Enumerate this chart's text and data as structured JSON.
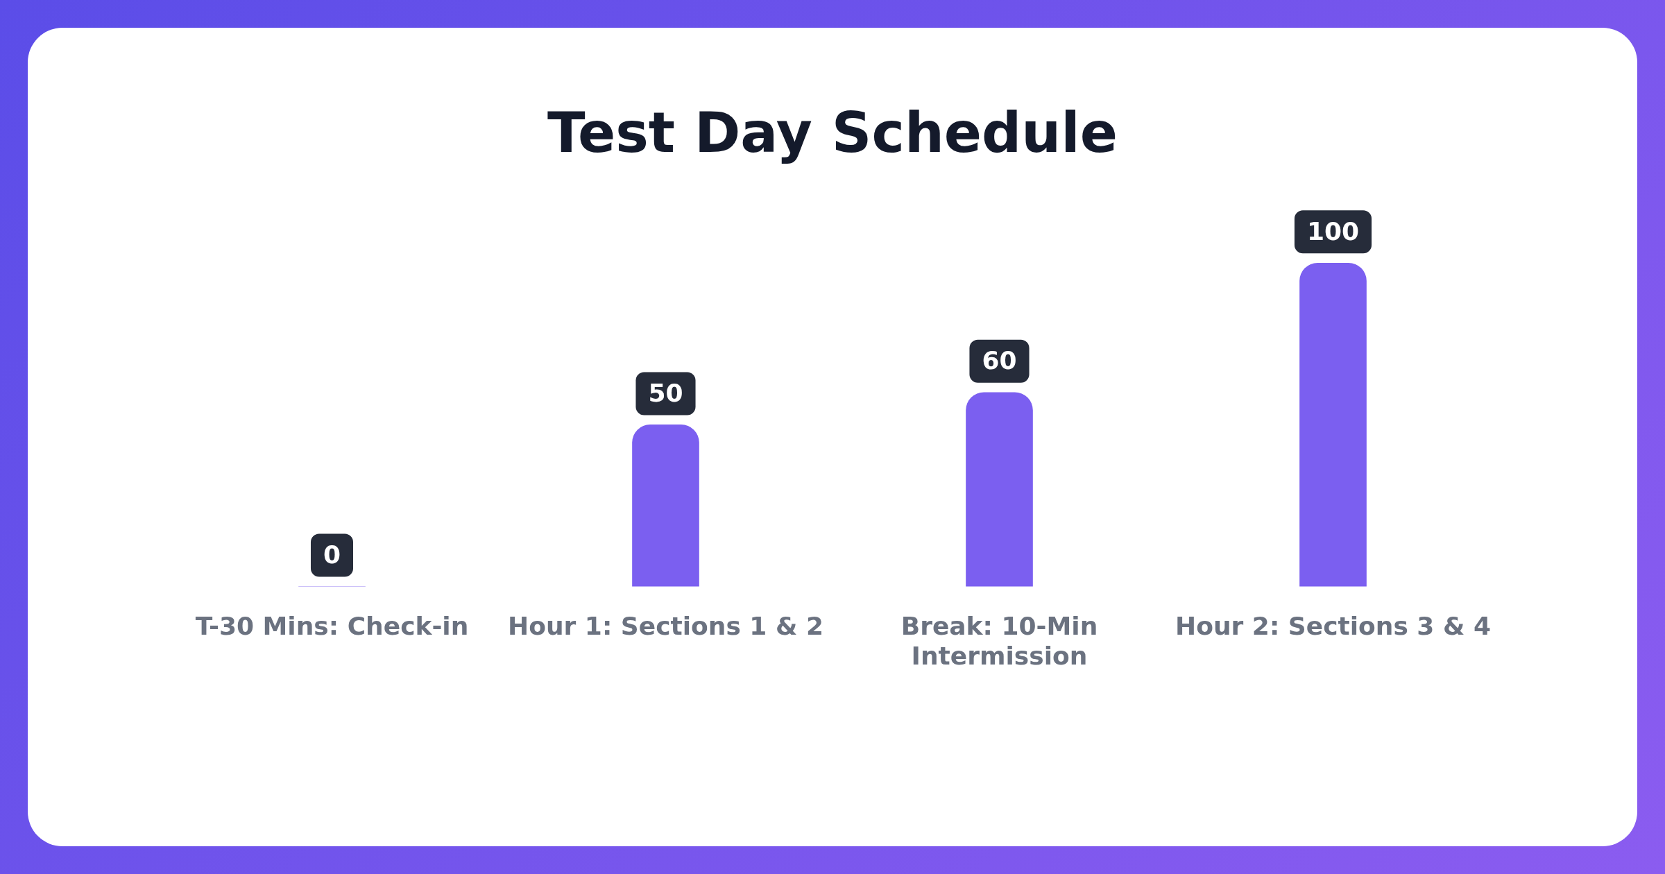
{
  "chart_data": {
    "type": "bar",
    "title": "Test Day Schedule",
    "categories": [
      "T-30 Mins: Check-in",
      "Hour 1: Sections 1 & 2",
      "Break: 10-Min Intermission",
      "Hour 2: Sections 3 & 4"
    ],
    "values": [
      0,
      50,
      60,
      100
    ],
    "color": "#7b5ff0",
    "tick_labels": "x",
    "data_labels": true
  }
}
